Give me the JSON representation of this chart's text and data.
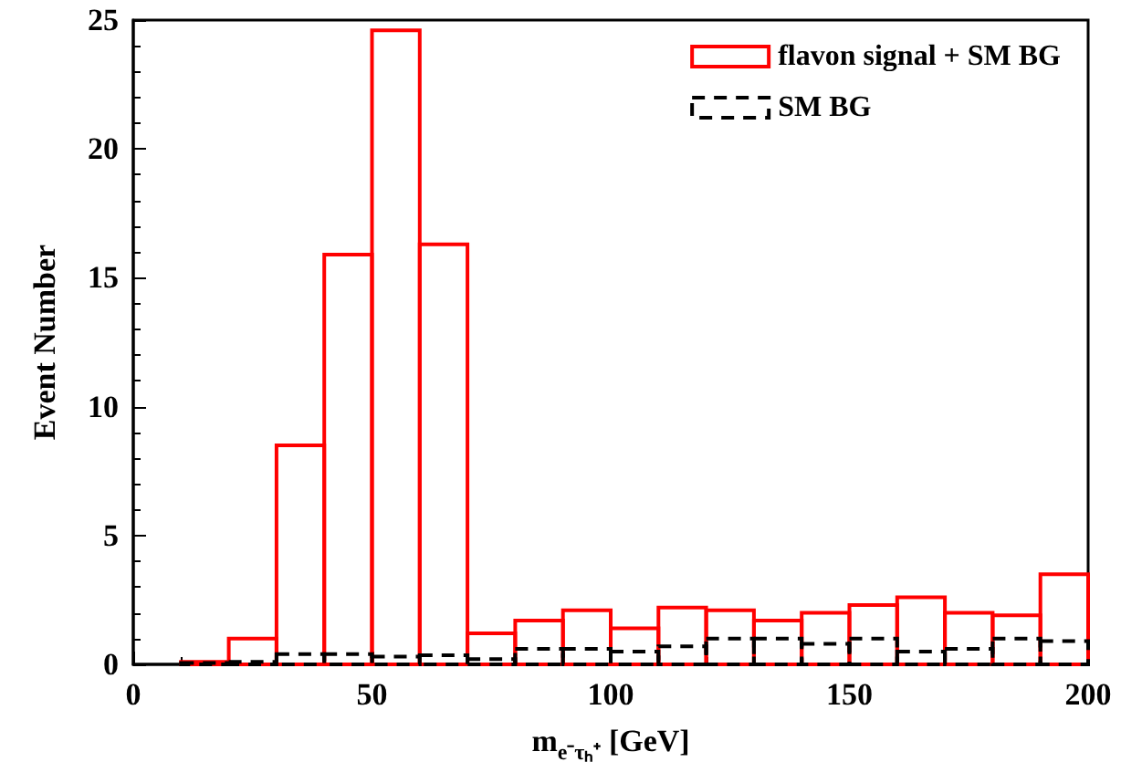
{
  "chart_data": {
    "type": "histogram",
    "xlabel": "m$_{e⁻τₕ⁺}$ [GeV]",
    "ylabel": "Event Number",
    "bins": [
      10,
      20,
      30,
      40,
      50,
      60,
      70,
      80,
      90,
      100,
      110,
      120,
      130,
      140,
      150,
      160,
      170,
      180,
      190,
      200
    ],
    "series": [
      {
        "name": "flavon signal + SM BG",
        "color": "#ff0000",
        "line_style": "solid",
        "values": [
          0.1,
          1.0,
          8.5,
          15.9,
          24.6,
          16.3,
          1.2,
          1.7,
          2.1,
          1.4,
          2.2,
          2.1,
          1.7,
          2.0,
          2.3,
          2.6,
          2.0,
          1.9,
          3.5
        ]
      },
      {
        "name": "SM BG",
        "color": "#000000",
        "line_style": "dashed",
        "values": [
          0.05,
          0.1,
          0.4,
          0.4,
          0.3,
          0.35,
          0.2,
          0.6,
          0.6,
          0.5,
          0.7,
          1.0,
          1.0,
          0.8,
          1.0,
          0.5,
          0.6,
          1.0,
          0.9
        ]
      }
    ],
    "xlim": [
      0,
      200
    ],
    "xticks": [
      0,
      50,
      100,
      150,
      200
    ],
    "ylim": [
      0,
      25
    ],
    "yticks": [
      0,
      5,
      10,
      15,
      20,
      25
    ],
    "grid": false,
    "legend": "top right"
  }
}
